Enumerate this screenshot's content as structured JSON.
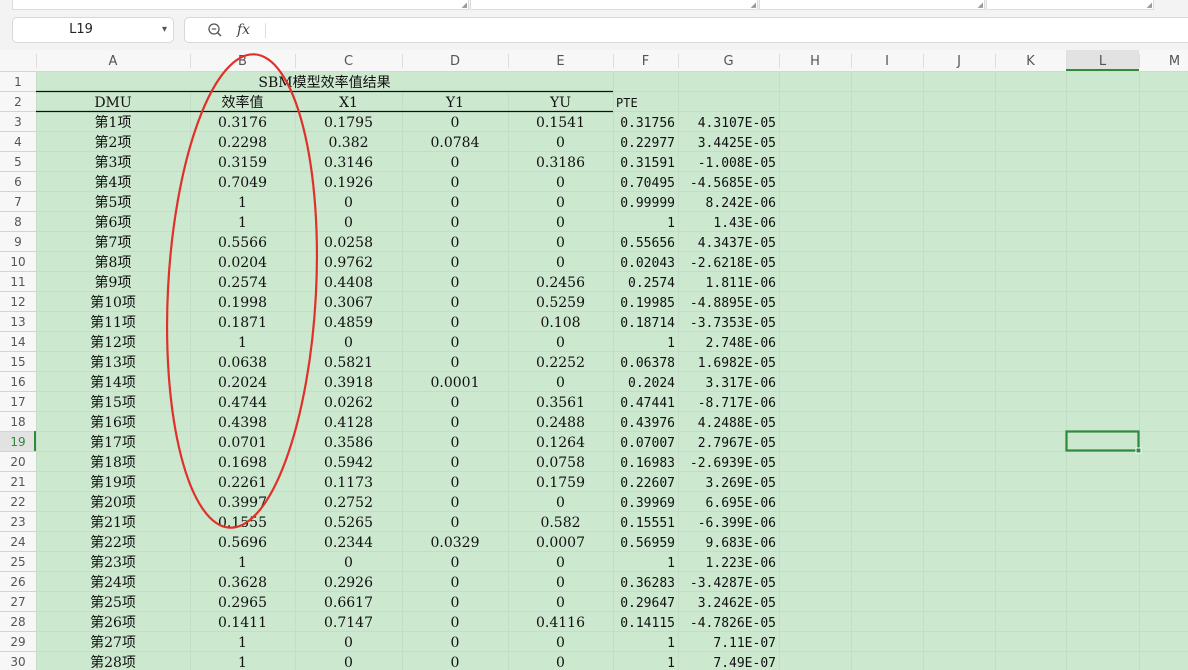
{
  "name_box": {
    "value": "L19"
  },
  "formula_bar": {
    "fx_label": "fx",
    "formula": ""
  },
  "columns": [
    "A",
    "B",
    "C",
    "D",
    "E",
    "F",
    "G",
    "H",
    "I",
    "J",
    "K",
    "L",
    "M"
  ],
  "selected_column": "L",
  "selected_row": 19,
  "rows": [
    {
      "n": 1,
      "merged_title": "SBM模型效率值结果",
      "f": "",
      "g": ""
    },
    {
      "n": 2,
      "a": "DMU",
      "b": "效率值",
      "c": "X1",
      "d": "Y1",
      "e": "YU",
      "f": "PTE",
      "g": ""
    },
    {
      "n": 3,
      "a": "第1项",
      "b": "0.3176",
      "c": "0.1795",
      "d": "0",
      "e": "0.1541",
      "f": "0.31756",
      "g": "4.3107E-05"
    },
    {
      "n": 4,
      "a": "第2项",
      "b": "0.2298",
      "c": "0.382",
      "d": "0.0784",
      "e": "0",
      "f": "0.22977",
      "g": "3.4425E-05"
    },
    {
      "n": 5,
      "a": "第3项",
      "b": "0.3159",
      "c": "0.3146",
      "d": "0",
      "e": "0.3186",
      "f": "0.31591",
      "g": "-1.008E-05"
    },
    {
      "n": 6,
      "a": "第4项",
      "b": "0.7049",
      "c": "0.1926",
      "d": "0",
      "e": "0",
      "f": "0.70495",
      "g": "-4.5685E-05"
    },
    {
      "n": 7,
      "a": "第5项",
      "b": "1",
      "c": "0",
      "d": "0",
      "e": "0",
      "f": "0.99999",
      "g": "8.242E-06"
    },
    {
      "n": 8,
      "a": "第6项",
      "b": "1",
      "c": "0",
      "d": "0",
      "e": "0",
      "f": "1",
      "g": "1.43E-06"
    },
    {
      "n": 9,
      "a": "第7项",
      "b": "0.5566",
      "c": "0.0258",
      "d": "0",
      "e": "0",
      "f": "0.55656",
      "g": "4.3437E-05"
    },
    {
      "n": 10,
      "a": "第8项",
      "b": "0.0204",
      "c": "0.9762",
      "d": "0",
      "e": "0",
      "f": "0.02043",
      "g": "-2.6218E-05"
    },
    {
      "n": 11,
      "a": "第9项",
      "b": "0.2574",
      "c": "0.4408",
      "d": "0",
      "e": "0.2456",
      "f": "0.2574",
      "g": "1.811E-06"
    },
    {
      "n": 12,
      "a": "第10项",
      "b": "0.1998",
      "c": "0.3067",
      "d": "0",
      "e": "0.5259",
      "f": "0.19985",
      "g": "-4.8895E-05"
    },
    {
      "n": 13,
      "a": "第11项",
      "b": "0.1871",
      "c": "0.4859",
      "d": "0",
      "e": "0.108",
      "f": "0.18714",
      "g": "-3.7353E-05"
    },
    {
      "n": 14,
      "a": "第12项",
      "b": "1",
      "c": "0",
      "d": "0",
      "e": "0",
      "f": "1",
      "g": "2.748E-06"
    },
    {
      "n": 15,
      "a": "第13项",
      "b": "0.0638",
      "c": "0.5821",
      "d": "0",
      "e": "0.2252",
      "f": "0.06378",
      "g": "1.6982E-05"
    },
    {
      "n": 16,
      "a": "第14项",
      "b": "0.2024",
      "c": "0.3918",
      "d": "0.0001",
      "e": "0",
      "f": "0.2024",
      "g": "3.317E-06"
    },
    {
      "n": 17,
      "a": "第15项",
      "b": "0.4744",
      "c": "0.0262",
      "d": "0",
      "e": "0.3561",
      "f": "0.47441",
      "g": "-8.717E-06"
    },
    {
      "n": 18,
      "a": "第16项",
      "b": "0.4398",
      "c": "0.4128",
      "d": "0",
      "e": "0.2488",
      "f": "0.43976",
      "g": "4.2488E-05"
    },
    {
      "n": 19,
      "a": "第17项",
      "b": "0.0701",
      "c": "0.3586",
      "d": "0",
      "e": "0.1264",
      "f": "0.07007",
      "g": "2.7967E-05"
    },
    {
      "n": 20,
      "a": "第18项",
      "b": "0.1698",
      "c": "0.5942",
      "d": "0",
      "e": "0.0758",
      "f": "0.16983",
      "g": "-2.6939E-05"
    },
    {
      "n": 21,
      "a": "第19项",
      "b": "0.2261",
      "c": "0.1173",
      "d": "0",
      "e": "0.1759",
      "f": "0.22607",
      "g": "3.269E-05"
    },
    {
      "n": 22,
      "a": "第20项",
      "b": "0.3997",
      "c": "0.2752",
      "d": "0",
      "e": "0",
      "f": "0.39969",
      "g": "6.695E-06"
    },
    {
      "n": 23,
      "a": "第21项",
      "b": "0.1555",
      "c": "0.5265",
      "d": "0",
      "e": "0.582",
      "f": "0.15551",
      "g": "-6.399E-06"
    },
    {
      "n": 24,
      "a": "第22项",
      "b": "0.5696",
      "c": "0.2344",
      "d": "0.0329",
      "e": "0.0007",
      "f": "0.56959",
      "g": "9.683E-06"
    },
    {
      "n": 25,
      "a": "第23项",
      "b": "1",
      "c": "0",
      "d": "0",
      "e": "0",
      "f": "1",
      "g": "1.223E-06"
    },
    {
      "n": 26,
      "a": "第24项",
      "b": "0.3628",
      "c": "0.2926",
      "d": "0",
      "e": "0",
      "f": "0.36283",
      "g": "-3.4287E-05"
    },
    {
      "n": 27,
      "a": "第25项",
      "b": "0.2965",
      "c": "0.6617",
      "d": "0",
      "e": "0",
      "f": "0.29647",
      "g": "3.2462E-05"
    },
    {
      "n": 28,
      "a": "第26项",
      "b": "0.1411",
      "c": "0.7147",
      "d": "0",
      "e": "0.4116",
      "f": "0.14115",
      "g": "-4.7826E-05"
    },
    {
      "n": 29,
      "a": "第27项",
      "b": "1",
      "c": "0",
      "d": "0",
      "e": "0",
      "f": "1",
      "g": "7.11E-07"
    },
    {
      "n": 30,
      "a": "第28项",
      "b": "1",
      "c": "0",
      "d": "0",
      "e": "0",
      "f": "1",
      "g": "7.49E-07"
    }
  ],
  "colors": {
    "cell_fill": "#cce8cf",
    "gridline": "#c5dcc8",
    "header_bg": "#f7f7f7",
    "header_text": "#555555",
    "selected_header_bg": "#e2e2e2",
    "selected_accent": "#2f8a3c",
    "annotation": "#e0302a"
  }
}
